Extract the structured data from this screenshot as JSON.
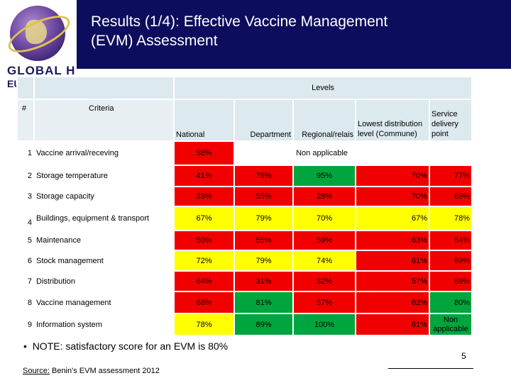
{
  "header": {
    "title_line1": "Results (1/4): Effective Vaccine Management",
    "title_line2": "(EVM) Assessment",
    "logo_text": "GLOBAL H",
    "logo_sub": "EU",
    "colors": {
      "header_bg": "#0d0d5e",
      "red": "#f10000",
      "yellow": "#ffff00",
      "green": "#00a53e",
      "table_header": "#dce9ef"
    }
  },
  "table": {
    "levels_label": "Levels",
    "num_header": "#",
    "criteria_header": "Criteria",
    "columns": [
      "National",
      "Department",
      "Regional/relais",
      "Lowest distribution level (Commune)",
      "Service delivery point"
    ],
    "rows": [
      {
        "num": "1",
        "criteria": "Vaccine arrival/receving",
        "national": "58%",
        "rest": "Non applicable"
      },
      {
        "num": "2",
        "criteria": "Storage temperature",
        "values": [
          "41%",
          "75%",
          "95%",
          "70%",
          "77%"
        ]
      },
      {
        "num": "3",
        "criteria": "Storage capacity",
        "values": [
          "33%",
          "55%",
          "28%",
          "70%",
          "69%"
        ]
      },
      {
        "num": "4",
        "criteria": "Buildings, equipment & transport",
        "values": [
          "67%",
          "79%",
          "70%",
          "67%",
          "78%"
        ]
      },
      {
        "num": "5",
        "criteria": "Maintenance",
        "values": [
          "50%",
          "55%",
          "59%",
          "63%",
          "54%"
        ]
      },
      {
        "num": "6",
        "criteria": "Stock management",
        "values": [
          "72%",
          "79%",
          "74%",
          "61%",
          "59%"
        ]
      },
      {
        "num": "7",
        "criteria": "Distribution",
        "values": [
          "64%",
          "31%",
          "32%",
          "57%",
          "69%"
        ]
      },
      {
        "num": "8",
        "criteria": "Vaccine management",
        "values": [
          "68%",
          "81%",
          "57%",
          "62%",
          "80%"
        ]
      },
      {
        "num": "9",
        "criteria": "Information system",
        "values": [
          "78%",
          "89%",
          "100%",
          "61%",
          "Non applicable"
        ]
      }
    ]
  },
  "note": "NOTE: satisfactory score for an EVM is 80%",
  "page_number": "5",
  "source": {
    "label": "Source:",
    "text": "Benin's EVM assessment 2012"
  }
}
